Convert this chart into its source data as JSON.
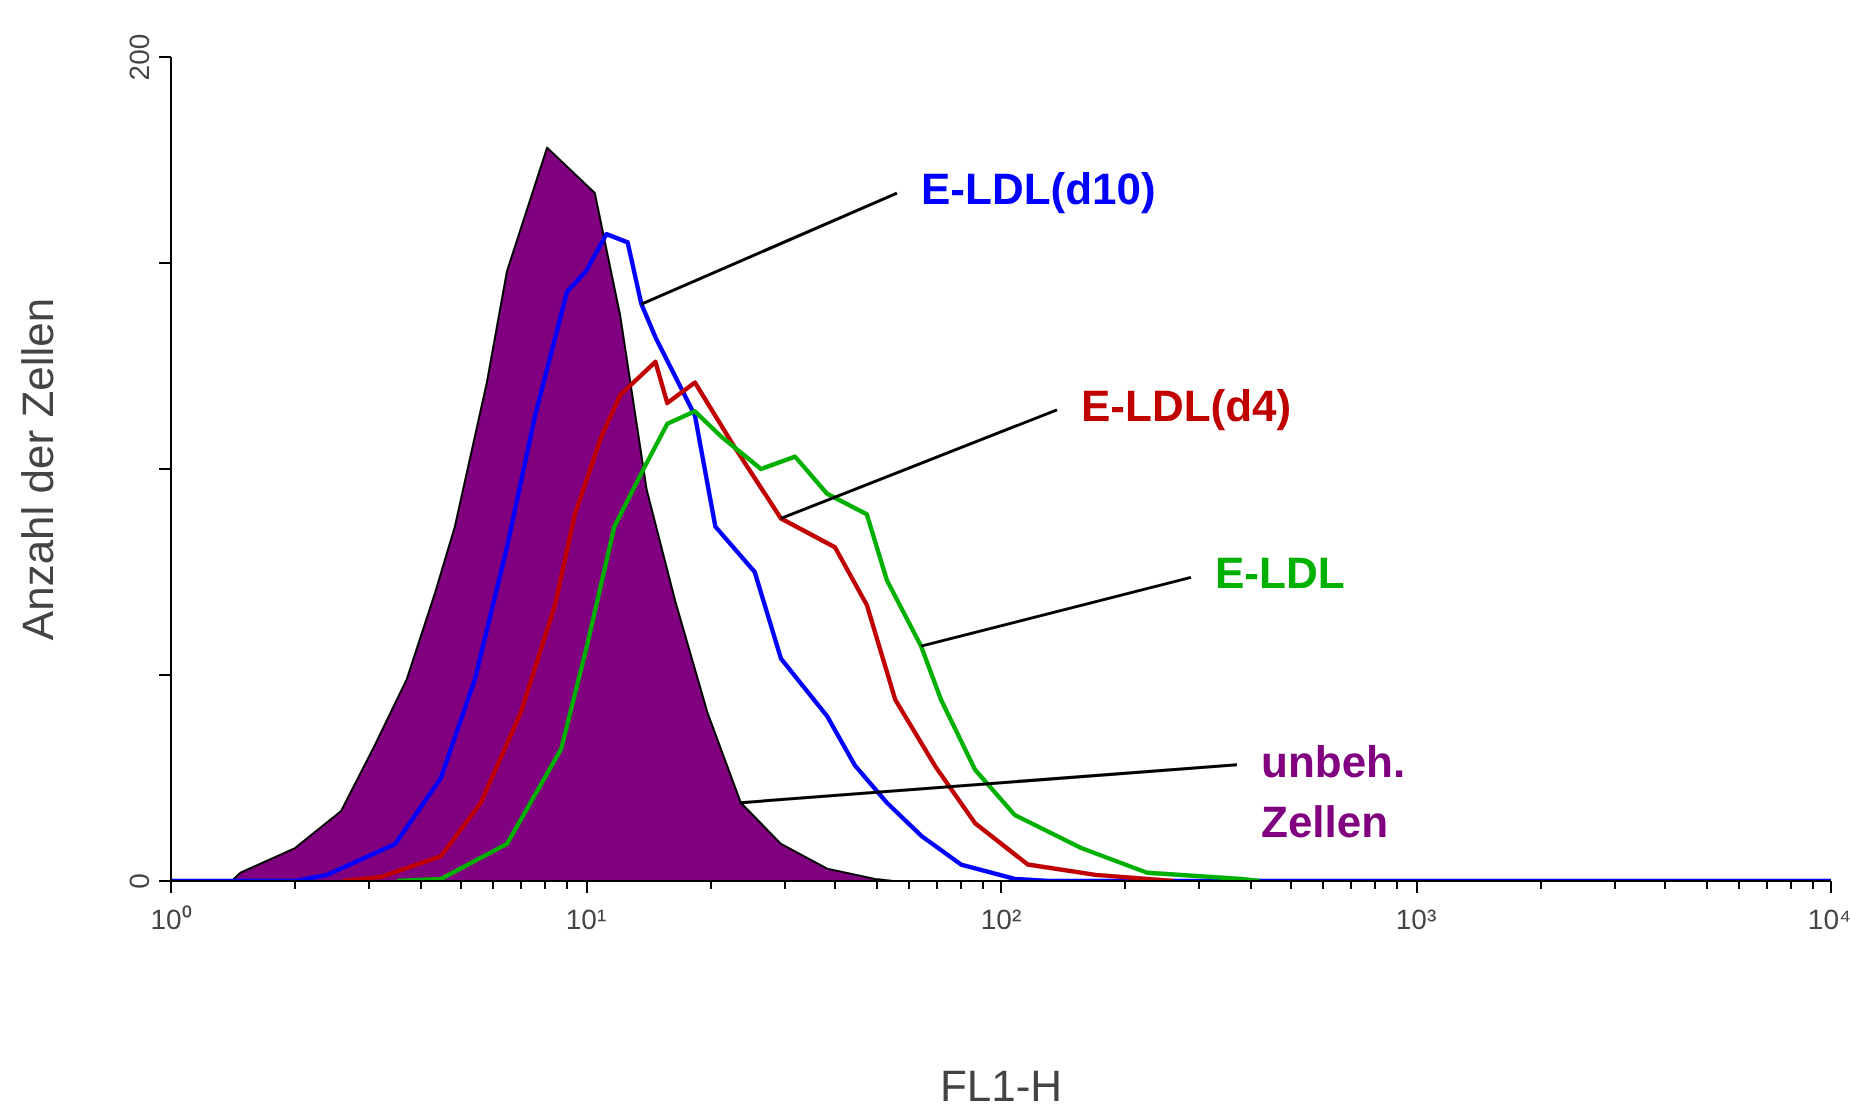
{
  "chart_data": {
    "type": "line",
    "xlabel": "FL1-H",
    "ylabel": "Anzahl der Zellen",
    "log": "x",
    "xlim": [
      1,
      10000
    ],
    "ylim": [
      0,
      200
    ],
    "xticks": [
      {
        "value": 1,
        "label": "10⁰"
      },
      {
        "value": 10,
        "label": "10¹"
      },
      {
        "value": 100,
        "label": "10²"
      },
      {
        "value": 1000,
        "label": "10³"
      },
      {
        "value": 10000,
        "label": "10⁴"
      }
    ],
    "yticks": [
      0,
      {
        "value": 50,
        "label": null
      },
      {
        "value": 100,
        "label": null
      },
      {
        "value": 150,
        "label": null
      },
      200
    ],
    "grid": false,
    "legend": false,
    "series": [
      {
        "name": "unbeh. Zellen",
        "type": "area",
        "color": "#800080",
        "x": [
          1.4,
          1.47,
          1.99,
          2.57,
          3.1,
          3.7,
          4.33,
          4.83,
          5.77,
          6.45,
          8.06,
          10.5,
          12.1,
          14.0,
          16.4,
          19.6,
          23.6,
          29.5,
          38.1,
          49.7,
          55
        ],
        "values": [
          0,
          2,
          8,
          17,
          33,
          49,
          70,
          86,
          121,
          148,
          178,
          167,
          137,
          95,
          68,
          41,
          19,
          9,
          3,
          0.5,
          0
        ]
      },
      {
        "name": "E-LDL(d10)",
        "color": "#0000ff",
        "x": [
          1,
          2.0,
          2.38,
          3.47,
          4.47,
          5.4,
          6.45,
          7.54,
          9.0,
          10,
          11.2,
          12.6,
          13.6,
          14.7,
          18.3,
          20.5,
          25.5,
          29.5,
          38.1,
          44.5,
          53.1,
          64.2,
          80.1,
          108,
          130,
          10000
        ],
        "values": [
          0,
          0,
          1.5,
          9,
          25,
          49,
          81,
          113,
          143,
          148,
          157,
          155,
          140,
          132,
          113,
          86,
          75,
          54,
          40,
          28,
          19,
          11,
          4,
          0.5,
          0,
          0
        ]
      },
      {
        "name": "E-LDL(d4)",
        "color": "#c00000",
        "x": [
          2.6,
          3.21,
          4.47,
          5.58,
          6.97,
          8.42,
          9.4,
          10.9,
          12.1,
          14.7,
          15.7,
          18.3,
          22.9,
          29.5,
          39.8,
          47.5,
          55.6,
          69.3,
          86.6,
          116,
          169,
          225,
          260
        ],
        "values": [
          0,
          1,
          6,
          19,
          41,
          67,
          89,
          108,
          118,
          126,
          116,
          121,
          105,
          88,
          81,
          67,
          44,
          28,
          14,
          4,
          1.5,
          0.5,
          0
        ]
      },
      {
        "name": "E-LDL",
        "color": "#00b000",
        "x": [
          3.5,
          4.47,
          6.45,
          8.71,
          10.05,
          11.7,
          13.6,
          15.7,
          18.3,
          21.1,
          26.4,
          31.9,
          38.1,
          47.5,
          53.1,
          64.2,
          71.7,
          86.6,
          108,
          156,
          225,
          379,
          420
        ],
        "values": [
          0,
          0.5,
          9,
          32,
          57,
          86,
          99,
          111,
          114,
          108,
          100,
          103,
          94,
          89,
          73,
          57,
          44,
          27,
          16,
          8,
          2,
          0.5,
          0
        ]
      }
    ]
  }
}
